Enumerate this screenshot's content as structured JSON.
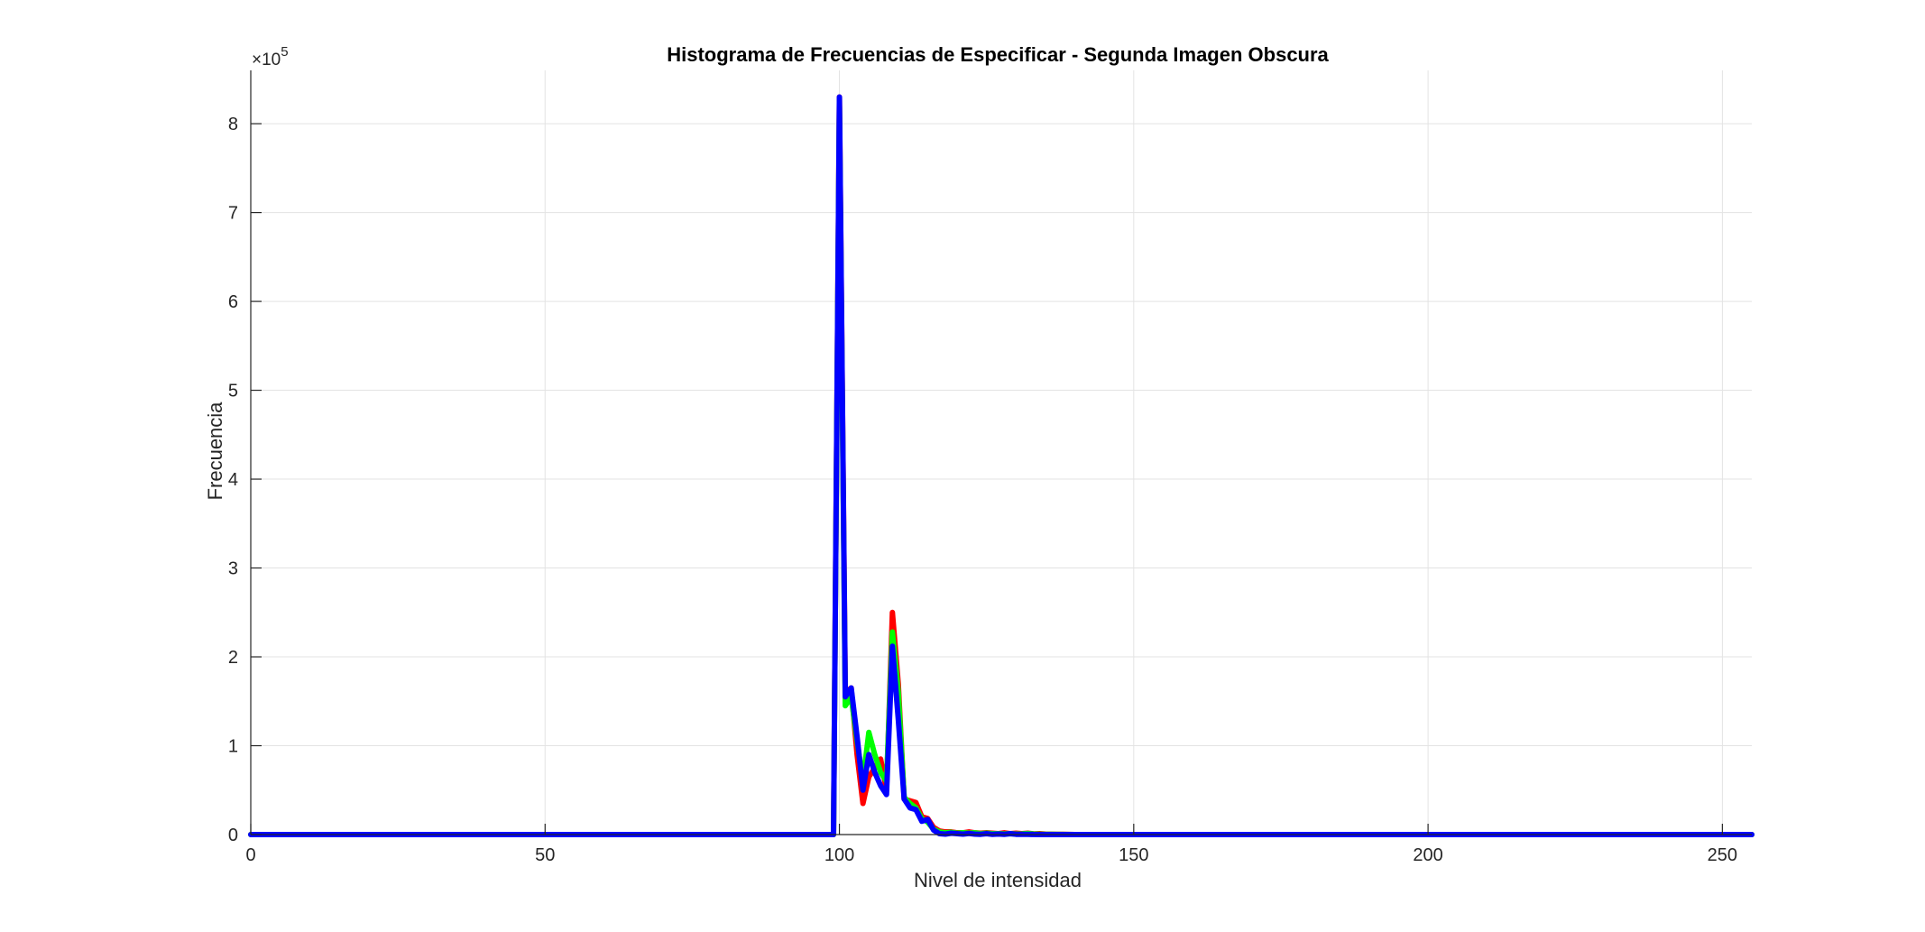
{
  "chart_data": {
    "type": "line",
    "title": "Histograma de Frecuencias de Especificar - Segunda Imagen Obscura",
    "xlabel": "Nivel de intensidad",
    "ylabel": "Frecuencia",
    "xlim": [
      0,
      255
    ],
    "ylim": [
      0,
      860000
    ],
    "xticks": [
      0,
      50,
      100,
      150,
      200,
      250
    ],
    "yticks": [
      0,
      100000,
      200000,
      300000,
      400000,
      500000,
      600000,
      700000,
      800000
    ],
    "ytick_labels": [
      "0",
      "1",
      "2",
      "3",
      "4",
      "5",
      "6",
      "7",
      "8"
    ],
    "y_exponent_prefix": "×10",
    "y_exponent": "5",
    "grid": true,
    "legend": "none",
    "series": [
      {
        "color": "#ff0000",
        "points": [
          [
            0,
            0
          ],
          [
            99,
            0
          ],
          [
            100,
            830000
          ],
          [
            101,
            160000
          ],
          [
            102,
            165000
          ],
          [
            103,
            90000
          ],
          [
            104,
            35000
          ],
          [
            105,
            65000
          ],
          [
            106,
            75000
          ],
          [
            107,
            85000
          ],
          [
            108,
            50000
          ],
          [
            109,
            250000
          ],
          [
            110,
            170000
          ],
          [
            111,
            40000
          ],
          [
            112,
            38000
          ],
          [
            113,
            36000
          ],
          [
            114,
            20000
          ],
          [
            115,
            18000
          ],
          [
            116,
            8000
          ],
          [
            117,
            4000
          ],
          [
            118,
            3000
          ],
          [
            119,
            3000
          ],
          [
            120,
            2000
          ],
          [
            121,
            2000
          ],
          [
            122,
            3000
          ],
          [
            123,
            2000
          ],
          [
            124,
            1500
          ],
          [
            125,
            2000
          ],
          [
            126,
            1500
          ],
          [
            127,
            1000
          ],
          [
            128,
            2000
          ],
          [
            129,
            1000
          ],
          [
            130,
            1500
          ],
          [
            131,
            1000
          ],
          [
            132,
            1500
          ],
          [
            133,
            800
          ],
          [
            134,
            1000
          ],
          [
            135,
            500
          ],
          [
            136,
            400
          ],
          [
            137,
            300
          ],
          [
            138,
            200
          ],
          [
            140,
            0
          ],
          [
            255,
            0
          ]
        ]
      },
      {
        "color": "#00ff00",
        "points": [
          [
            0,
            0
          ],
          [
            99,
            0
          ],
          [
            100,
            820000
          ],
          [
            101,
            145000
          ],
          [
            102,
            155000
          ],
          [
            103,
            105000
          ],
          [
            104,
            60000
          ],
          [
            105,
            115000
          ],
          [
            106,
            90000
          ],
          [
            107,
            70000
          ],
          [
            108,
            60000
          ],
          [
            109,
            228000
          ],
          [
            110,
            160000
          ],
          [
            111,
            42000
          ],
          [
            112,
            35000
          ],
          [
            113,
            30000
          ],
          [
            114,
            18000
          ],
          [
            115,
            14000
          ],
          [
            116,
            6000
          ],
          [
            117,
            3000
          ],
          [
            118,
            2000
          ],
          [
            119,
            2500
          ],
          [
            120,
            1500
          ],
          [
            121,
            2000
          ],
          [
            122,
            1500
          ],
          [
            123,
            2000
          ],
          [
            124,
            1000
          ],
          [
            125,
            1500
          ],
          [
            126,
            1000
          ],
          [
            127,
            1000
          ],
          [
            128,
            800
          ],
          [
            129,
            1000
          ],
          [
            130,
            600
          ],
          [
            131,
            800
          ],
          [
            132,
            1200
          ],
          [
            133,
            600
          ],
          [
            134,
            400
          ],
          [
            135,
            300
          ],
          [
            136,
            200
          ],
          [
            138,
            100
          ],
          [
            140,
            0
          ],
          [
            255,
            0
          ]
        ]
      },
      {
        "color": "#0000ff",
        "points": [
          [
            0,
            0
          ],
          [
            99,
            0
          ],
          [
            100,
            830000
          ],
          [
            101,
            155000
          ],
          [
            102,
            165000
          ],
          [
            103,
            110000
          ],
          [
            104,
            50000
          ],
          [
            105,
            90000
          ],
          [
            106,
            70000
          ],
          [
            107,
            55000
          ],
          [
            108,
            45000
          ],
          [
            109,
            212000
          ],
          [
            110,
            130000
          ],
          [
            111,
            40000
          ],
          [
            112,
            30000
          ],
          [
            113,
            28000
          ],
          [
            114,
            15000
          ],
          [
            115,
            17000
          ],
          [
            116,
            5000
          ],
          [
            117,
            1000
          ],
          [
            118,
            500
          ],
          [
            119,
            1500
          ],
          [
            120,
            1000
          ],
          [
            121,
            500
          ],
          [
            122,
            1200
          ],
          [
            123,
            500
          ],
          [
            124,
            300
          ],
          [
            125,
            1000
          ],
          [
            126,
            200
          ],
          [
            127,
            600
          ],
          [
            128,
            200
          ],
          [
            129,
            1000
          ],
          [
            130,
            300
          ],
          [
            131,
            200
          ],
          [
            132,
            300
          ],
          [
            133,
            100
          ],
          [
            135,
            50
          ],
          [
            140,
            0
          ],
          [
            255,
            0
          ]
        ]
      }
    ]
  }
}
